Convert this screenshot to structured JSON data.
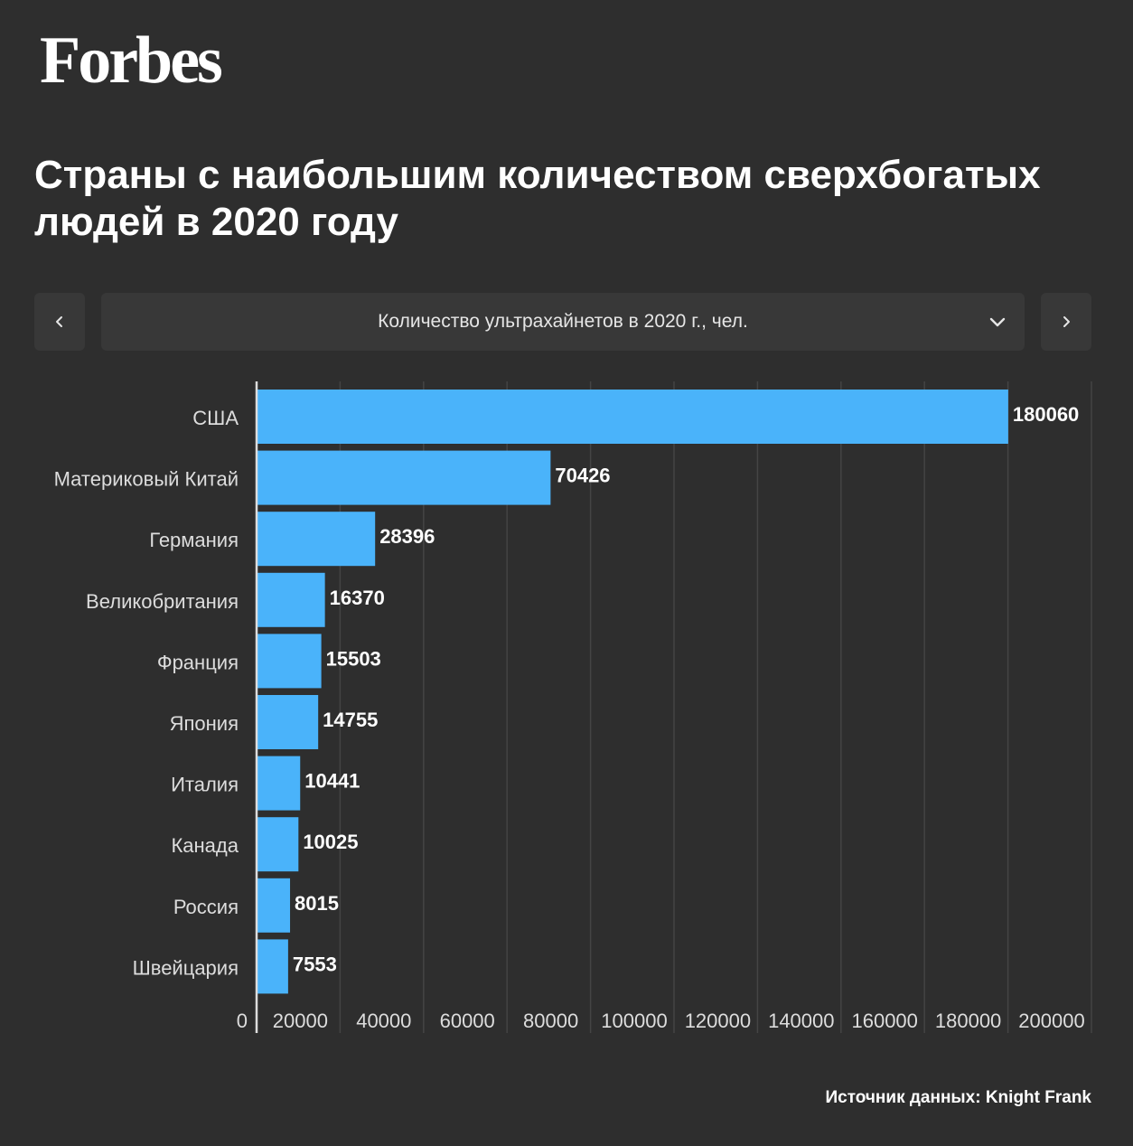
{
  "header": {
    "logo": "Forbes",
    "title": "Страны с наибольшим количеством сверхбогатых людей в 2020 году"
  },
  "selector": {
    "label": "Количество ультрахайнетов в 2020 г., чел.",
    "prev_icon": "chevron-left-icon",
    "next_icon": "chevron-right-icon",
    "dropdown_icon": "chevron-down-icon"
  },
  "chart_data": {
    "type": "bar",
    "orientation": "horizontal",
    "categories": [
      "США",
      "Материковый Китай",
      "Германия",
      "Великобритания",
      "Франция",
      "Япония",
      "Италия",
      "Канада",
      "Россия",
      "Швейцария"
    ],
    "values": [
      180060,
      70426,
      28396,
      16370,
      15503,
      14755,
      10441,
      10025,
      8015,
      7553
    ],
    "xlim": [
      0,
      200000
    ],
    "xticks": [
      "0",
      "20000",
      "40000",
      "60000",
      "80000",
      "100000",
      "120000",
      "140000",
      "160000",
      "180000",
      "200000"
    ],
    "grid": true,
    "bar_color": "#4ab3fa"
  },
  "footer": {
    "source": "Источник данных: Knight Frank"
  }
}
